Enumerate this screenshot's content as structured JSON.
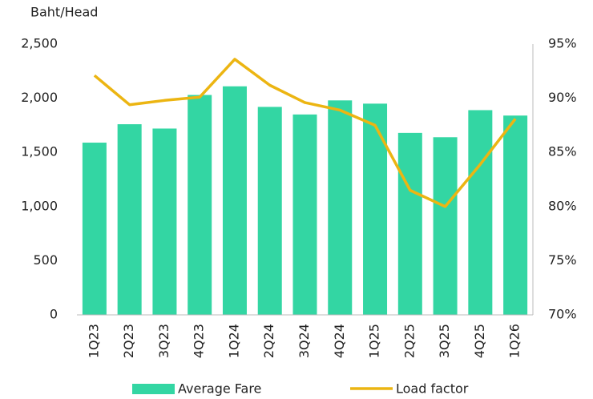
{
  "chart_data": {
    "type": "bar_line",
    "y_axis_label": "Baht/Head",
    "categories": [
      "1Q23",
      "2Q23",
      "3Q23",
      "4Q23",
      "1Q24",
      "2Q24",
      "3Q24",
      "4Q24",
      "1Q25",
      "2Q25",
      "3Q25",
      "4Q25",
      "1Q26"
    ],
    "series": [
      {
        "name": "Average Fare",
        "type": "bar",
        "color": "#33d6a3",
        "axis": "y",
        "values": [
          1590,
          1760,
          1720,
          2030,
          2110,
          1920,
          1850,
          1980,
          1950,
          1680,
          1640,
          1890,
          1840
        ]
      },
      {
        "name": "Load factor",
        "type": "line",
        "color": "#ecb512",
        "axis": "y2",
        "values": [
          92.1,
          89.4,
          89.8,
          90.1,
          93.6,
          91.2,
          89.6,
          88.9,
          87.5,
          81.5,
          80.0,
          83.9,
          88.1
        ]
      }
    ],
    "ylim": [
      0,
      2500
    ],
    "yticks": [
      0,
      500,
      {
        "value": 1000,
        "label": "1,000"
      },
      {
        "value": 1500,
        "label": "1,500"
      },
      {
        "value": 2000,
        "label": "2,000"
      },
      {
        "value": 2500,
        "label": "2,500"
      }
    ],
    "y2lim": [
      70,
      95
    ],
    "y2ticks": [
      {
        "value": 70,
        "label": "70%"
      },
      {
        "value": 75,
        "label": "75%"
      },
      {
        "value": 80,
        "label": "80%"
      },
      {
        "value": 85,
        "label": "85%"
      },
      {
        "value": 90,
        "label": "90%"
      },
      {
        "value": 95,
        "label": "95%"
      }
    ],
    "grid": false,
    "legend": "bottom"
  }
}
